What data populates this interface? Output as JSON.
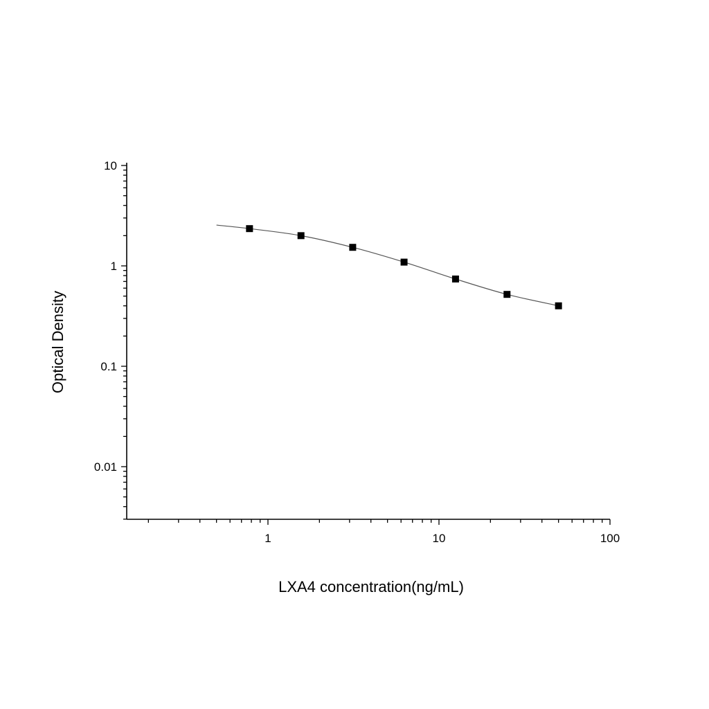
{
  "chart_data": {
    "type": "scatter",
    "title": "",
    "xlabel": "LXA4 concentration(ng/mL)",
    "ylabel": "Optical Density",
    "x_scale": "log",
    "y_scale": "log",
    "xlim": [
      0.15,
      100
    ],
    "ylim": [
      0.003,
      10
    ],
    "x_tick_labels": [
      "1",
      "10",
      "100"
    ],
    "y_tick_labels": [
      "10",
      "1",
      "0.1",
      "0.01"
    ],
    "grid": false,
    "legend": "none",
    "series": [
      {
        "marker": "square",
        "color": "#000000",
        "x": [
          0.78,
          1.56,
          3.13,
          6.25,
          12.5,
          25,
          50
        ],
        "y": [
          2.35,
          2.0,
          1.53,
          1.09,
          0.74,
          0.52,
          0.4
        ]
      }
    ],
    "fit_curve": {
      "type": "line",
      "color": "#555555",
      "x": [
        0.5,
        0.78,
        1.56,
        3.13,
        6.25,
        12.5,
        25,
        50
      ],
      "y": [
        2.55,
        2.35,
        2.0,
        1.53,
        1.09,
        0.74,
        0.52,
        0.4
      ]
    }
  }
}
